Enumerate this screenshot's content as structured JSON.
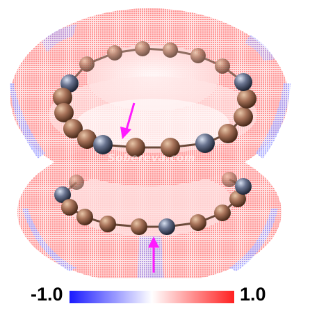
{
  "image": {
    "description_kind": "molecular-visualization",
    "surface_colors": {
      "negative": "#2020ff",
      "neutral": "#ffffff",
      "positive": "#ff1a1a"
    },
    "atom_color": "#9a6a4a",
    "hetero_atom_color": "#5a6478",
    "arrow_color": "#ff1aff"
  },
  "watermark": "Sobereva.com",
  "colorbar": {
    "min_label": "-1.0",
    "max_label": "1.0",
    "colors": [
      "#1a1aff",
      "#ffffff",
      "#ff2020"
    ]
  }
}
